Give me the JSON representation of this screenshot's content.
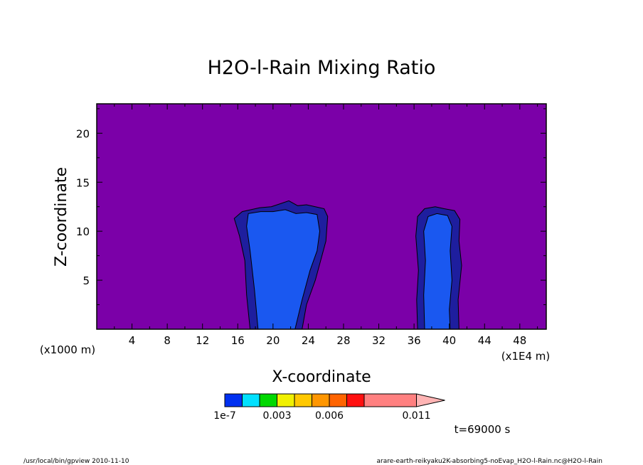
{
  "chart_data": {
    "type": "heatmap",
    "title": "H2O-l-Rain Mixing Ratio",
    "xlabel": "X-coordinate",
    "ylabel": "Z-coordinate",
    "x_unit": "(x1E4 m)",
    "y_unit": "(x1000 m)",
    "xlim": [
      0,
      51
    ],
    "ylim": [
      0,
      23
    ],
    "x_ticks": [
      4,
      8,
      12,
      16,
      20,
      24,
      28,
      32,
      36,
      40,
      44,
      48
    ],
    "y_ticks": [
      5,
      10,
      15,
      20
    ],
    "background_color": "#7b00a8",
    "columns": [
      {
        "name": "column-1",
        "outer": [
          [
            17.4,
            0
          ],
          [
            17,
            3.5
          ],
          [
            16.8,
            7
          ],
          [
            16.2,
            9.5
          ],
          [
            15.6,
            11.3
          ],
          [
            16.5,
            12
          ],
          [
            17.5,
            12.2
          ],
          [
            18.5,
            12.4
          ],
          [
            19.8,
            12.5
          ],
          [
            20.8,
            12.8
          ],
          [
            21.8,
            13.1
          ],
          [
            22.8,
            12.6
          ],
          [
            23.8,
            12.7
          ],
          [
            24.8,
            12.5
          ],
          [
            25.8,
            12.3
          ],
          [
            26.2,
            11.5
          ],
          [
            26,
            9
          ],
          [
            25.4,
            7
          ],
          [
            24.8,
            5
          ],
          [
            23.8,
            2.5
          ],
          [
            23.3,
            0
          ]
        ],
        "inner": [
          [
            18.3,
            0
          ],
          [
            17.9,
            4
          ],
          [
            17.4,
            8
          ],
          [
            17,
            10.5
          ],
          [
            17.2,
            11.8
          ],
          [
            18.6,
            12
          ],
          [
            20,
            12
          ],
          [
            21.4,
            12.2
          ],
          [
            22.6,
            11.8
          ],
          [
            23.8,
            11.9
          ],
          [
            25,
            11.7
          ],
          [
            25.3,
            10
          ],
          [
            25,
            8
          ],
          [
            24.2,
            6
          ],
          [
            23.3,
            3
          ],
          [
            22.5,
            0
          ]
        ]
      },
      {
        "name": "column-2",
        "outer": [
          [
            36.4,
            0
          ],
          [
            36.3,
            3
          ],
          [
            36.5,
            6
          ],
          [
            36.2,
            9.5
          ],
          [
            36.4,
            11.5
          ],
          [
            37.2,
            12.3
          ],
          [
            38.4,
            12.5
          ],
          [
            39.4,
            12.3
          ],
          [
            40.6,
            12.1
          ],
          [
            41.2,
            11.2
          ],
          [
            41.1,
            9
          ],
          [
            41.4,
            6.5
          ],
          [
            41,
            3
          ],
          [
            41.1,
            0
          ]
        ],
        "inner": [
          [
            37.2,
            0
          ],
          [
            37.1,
            3.5
          ],
          [
            37.3,
            7
          ],
          [
            37.1,
            10
          ],
          [
            37.6,
            11.5
          ],
          [
            38.6,
            11.8
          ],
          [
            39.8,
            11.6
          ],
          [
            40.3,
            10.5
          ],
          [
            40.1,
            8
          ],
          [
            40.3,
            5
          ],
          [
            40,
            2
          ],
          [
            40.1,
            0
          ]
        ]
      }
    ],
    "color_levels": [
      {
        "color": "#0030f0"
      },
      {
        "color": "#00e0ff"
      },
      {
        "color": "#00d800"
      },
      {
        "color": "#f0f000"
      },
      {
        "color": "#ffc800"
      },
      {
        "color": "#ff9600"
      },
      {
        "color": "#ff6400"
      },
      {
        "color": "#ff1010"
      },
      {
        "color": "#ff8080",
        "wide": true
      },
      {
        "color": "#ffb4b4",
        "arrow": true
      }
    ],
    "colorbar_labels": [
      {
        "text": "1e-7",
        "pos": 0
      },
      {
        "text": "0.003",
        "pos": 3
      },
      {
        "text": "0.006",
        "pos": 6
      },
      {
        "text": "0.011",
        "pos": 11
      }
    ],
    "colors": {
      "outer_contour": "#1e1e9e",
      "inner_contour": "#1a58f0"
    }
  },
  "annotations": {
    "time": "t=69000 s",
    "footer_left": "/usr/local/bin/gpview  2010-11-10",
    "footer_right": "arare-earth-reikyaku2K-absorbing5-noEvap_H2O-l-Rain.nc@H2O-l-Rain"
  }
}
